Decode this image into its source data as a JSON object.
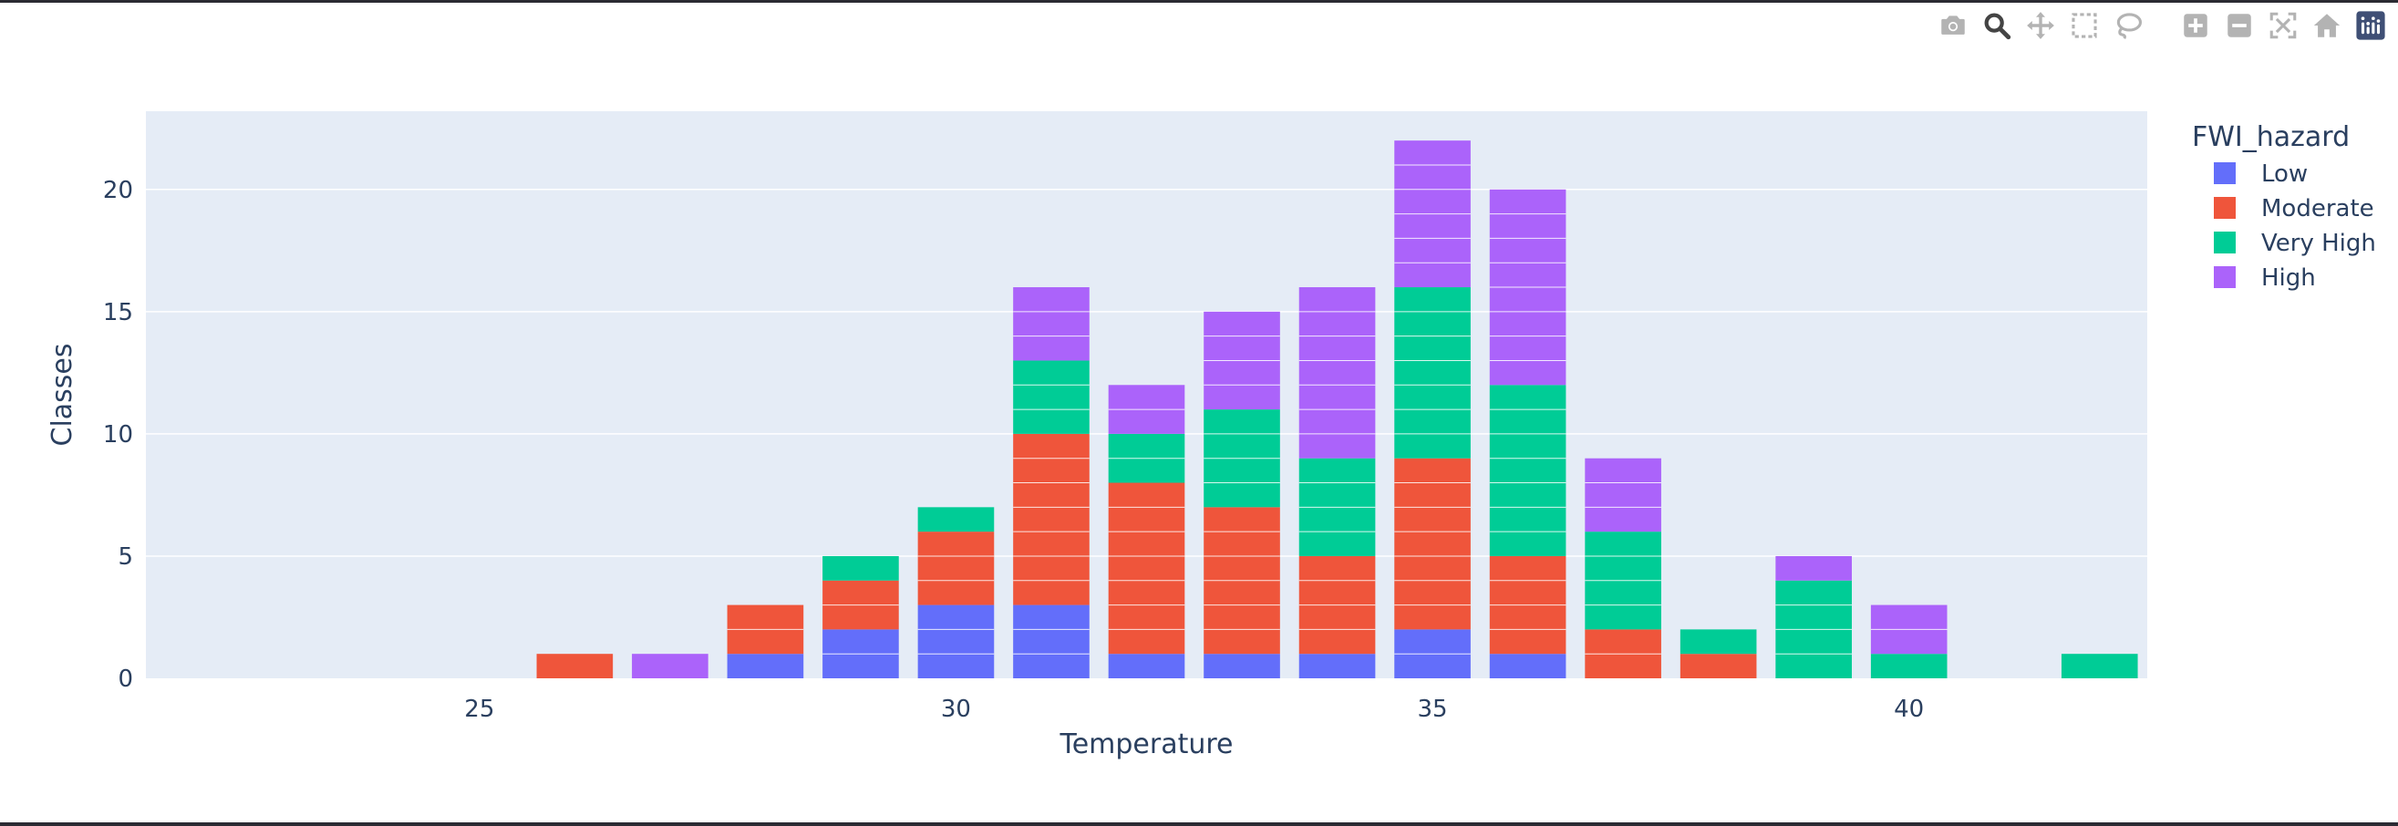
{
  "modebar": {
    "buttons": [
      {
        "name": "camera-icon",
        "label": "Download plot as a png"
      },
      {
        "name": "zoom-icon",
        "label": "Zoom",
        "active": true
      },
      {
        "name": "pan-icon",
        "label": "Pan"
      },
      {
        "name": "box-select-icon",
        "label": "Box Select"
      },
      {
        "name": "lasso-select-icon",
        "label": "Lasso Select"
      },
      {
        "name": "zoom-in-icon",
        "label": "Zoom in"
      },
      {
        "name": "zoom-out-icon",
        "label": "Zoom out"
      },
      {
        "name": "autoscale-icon",
        "label": "Autoscale"
      },
      {
        "name": "reset-axes-icon",
        "label": "Reset axes"
      },
      {
        "name": "plotly-logo-icon",
        "label": "Produced with Plotly"
      }
    ]
  },
  "chart_data": {
    "type": "bar",
    "barmode": "stack",
    "xlabel": "Temperature",
    "ylabel": "Classes",
    "legend_title": "FWI_hazard",
    "legend_position": "top-right",
    "xlim": [
      21.5,
      42.5
    ],
    "ylim": [
      0,
      23.2
    ],
    "xticks": [
      25,
      30,
      35,
      40
    ],
    "yticks": [
      0,
      5,
      10,
      15,
      20
    ],
    "grid": true,
    "plot_bgcolor": "#e5ecf6",
    "categories": [
      22,
      23,
      24,
      25,
      26,
      27,
      28,
      29,
      30,
      31,
      32,
      33,
      34,
      35,
      36,
      37,
      38,
      39,
      40,
      41,
      42
    ],
    "series": [
      {
        "name": "Low",
        "color": "#636efa",
        "values": [
          0,
          0,
          0,
          0,
          0,
          0,
          1,
          2,
          3,
          3,
          1,
          1,
          1,
          2,
          1,
          0,
          0,
          0,
          0,
          0,
          0
        ]
      },
      {
        "name": "Moderate",
        "color": "#ef553b",
        "values": [
          0,
          0,
          0,
          0,
          1,
          0,
          2,
          2,
          3,
          7,
          7,
          6,
          4,
          7,
          4,
          2,
          1,
          0,
          0,
          0,
          0
        ]
      },
      {
        "name": "Very High",
        "color": "#00cc96",
        "values": [
          0,
          0,
          0,
          0,
          0,
          0,
          0,
          1,
          1,
          3,
          2,
          4,
          4,
          7,
          7,
          4,
          1,
          4,
          1,
          0,
          1
        ]
      },
      {
        "name": "High",
        "color": "#ab63fa",
        "values": [
          0,
          0,
          0,
          0,
          0,
          1,
          0,
          0,
          0,
          3,
          2,
          4,
          7,
          6,
          8,
          3,
          0,
          1,
          2,
          0,
          0
        ]
      }
    ]
  }
}
